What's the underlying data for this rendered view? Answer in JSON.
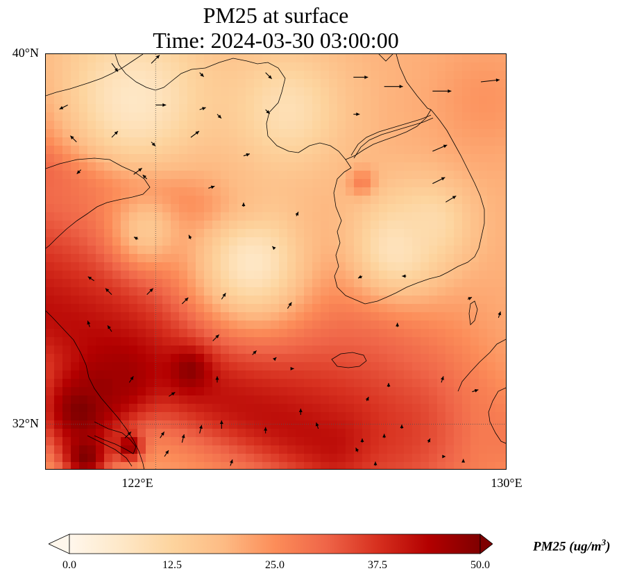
{
  "title": {
    "line1": "PM25 at surface",
    "line2": "Time: 2024-03-30 03:00:00"
  },
  "map": {
    "extent": {
      "lon_min": 119.5,
      "lon_max": 130.0,
      "lat_min": 31.0,
      "lat_max": 40.0
    },
    "lat_ticks": [
      {
        "value": 40,
        "label": "40°N"
      },
      {
        "value": 32,
        "label": "32°N"
      }
    ],
    "lon_ticks": [
      {
        "value": 122,
        "label": "122°E"
      },
      {
        "value": 130,
        "label": "130°E"
      }
    ],
    "gridlines": {
      "lon": [
        122
      ],
      "lat": [
        32
      ],
      "style": "dotted"
    },
    "field": "PM25",
    "background_value": 20
  },
  "pm25_features": [
    {
      "kind": "band",
      "from": [
        119.0,
        38.0
      ],
      "to": [
        127.0,
        34.5
      ],
      "width_deg": 1.5,
      "value": 28
    },
    {
      "kind": "band",
      "from": [
        119.5,
        37.6
      ],
      "to": [
        124.0,
        36.3
      ],
      "width_deg": 0.5,
      "value": 34
    },
    {
      "kind": "band",
      "from": [
        119.3,
        35.3
      ],
      "to": [
        127.5,
        31.9
      ],
      "width_deg": 2.2,
      "value": 36
    },
    {
      "kind": "band",
      "from": [
        119.3,
        34.5
      ],
      "to": [
        126.0,
        31.6
      ],
      "width_deg": 1.0,
      "value": 42
    },
    {
      "kind": "band",
      "from": [
        125.0,
        33.0
      ],
      "to": [
        130.5,
        31.6
      ],
      "width_deg": 0.9,
      "value": 28
    },
    {
      "kind": "blob",
      "center": [
        120.3,
        32.3
      ],
      "radius_deg": 1.0,
      "value": 50
    },
    {
      "kind": "blob",
      "center": [
        120.8,
        32.8
      ],
      "radius_deg": 0.6,
      "value": 47
    },
    {
      "kind": "blob",
      "center": [
        121.3,
        33.0
      ],
      "radius_deg": 0.7,
      "value": 46
    },
    {
      "kind": "blob",
      "center": [
        122.8,
        33.2
      ],
      "radius_deg": 0.45,
      "value": 50
    },
    {
      "kind": "blob",
      "center": [
        120.4,
        31.3
      ],
      "radius_deg": 0.5,
      "value": 50
    },
    {
      "kind": "blob",
      "center": [
        121.4,
        31.5
      ],
      "radius_deg": 0.3,
      "value": 48
    },
    {
      "kind": "blob",
      "center": [
        126.7,
        37.2
      ],
      "radius_deg": 0.3,
      "value": 32
    },
    {
      "kind": "clean",
      "center": [
        121.5,
        39.0
      ],
      "radius_deg": 1.8,
      "value": 5
    },
    {
      "kind": "clean",
      "center": [
        125.0,
        38.8
      ],
      "radius_deg": 1.3,
      "value": 8
    },
    {
      "kind": "clean",
      "center": [
        124.2,
        35.5
      ],
      "radius_deg": 1.5,
      "value": 4
    },
    {
      "kind": "clean",
      "center": [
        127.5,
        35.8
      ],
      "radius_deg": 1.2,
      "value": 6
    },
    {
      "kind": "clean",
      "center": [
        128.3,
        36.4
      ],
      "radius_deg": 0.8,
      "value": 10
    },
    {
      "kind": "clean",
      "center": [
        121.8,
        36.2
      ],
      "radius_deg": 0.8,
      "value": 14
    },
    {
      "kind": "boost",
      "center": [
        129.5,
        39.0
      ],
      "radius_deg": 1.2,
      "value": 24
    },
    {
      "kind": "boost",
      "center": [
        127.8,
        38.6
      ],
      "radius_deg": 0.5,
      "value": 20
    }
  ],
  "wind_vectors": [
    [
      121.0,
      39.8,
      0.3,
      -0.4
    ],
    [
      121.9,
      39.8,
      0.4,
      0.4
    ],
    [
      123.0,
      39.6,
      0.2,
      -0.2
    ],
    [
      124.5,
      39.6,
      0.3,
      -0.3
    ],
    [
      126.5,
      39.5,
      0.7,
      0.0
    ],
    [
      127.2,
      39.3,
      0.9,
      0.0
    ],
    [
      128.3,
      39.2,
      0.9,
      0.0
    ],
    [
      129.4,
      39.4,
      0.9,
      0.1
    ],
    [
      120.0,
      38.9,
      -0.4,
      -0.2
    ],
    [
      122.0,
      38.9,
      0.5,
      0.0
    ],
    [
      123.0,
      38.8,
      0.3,
      0.1
    ],
    [
      123.4,
      38.7,
      0.2,
      -0.2
    ],
    [
      124.5,
      38.8,
      0.2,
      -0.2
    ],
    [
      126.5,
      38.7,
      0.3,
      0.0
    ],
    [
      120.2,
      38.1,
      -0.3,
      0.3
    ],
    [
      121.0,
      38.2,
      0.3,
      0.3
    ],
    [
      121.9,
      38.1,
      0.2,
      -0.2
    ],
    [
      122.8,
      38.2,
      0.4,
      0.3
    ],
    [
      124.0,
      37.8,
      0.3,
      0.1
    ],
    [
      128.3,
      37.9,
      0.7,
      0.3
    ],
    [
      120.3,
      37.5,
      -0.2,
      -0.2
    ],
    [
      121.5,
      37.4,
      0.4,
      0.3
    ],
    [
      121.8,
      37.3,
      -0.2,
      0.2
    ],
    [
      123.2,
      37.1,
      0.3,
      0.1
    ],
    [
      124.0,
      36.7,
      0.0,
      0.2
    ],
    [
      125.2,
      36.5,
      0.1,
      0.2
    ],
    [
      128.3,
      37.2,
      0.6,
      0.3
    ],
    [
      128.6,
      36.8,
      0.5,
      0.3
    ],
    [
      121.6,
      36.0,
      -0.2,
      0.1
    ],
    [
      122.8,
      36.0,
      -0.1,
      0.2
    ],
    [
      124.7,
      35.8,
      -0.1,
      0.1
    ],
    [
      126.7,
      35.2,
      -0.2,
      -0.1
    ],
    [
      127.7,
      35.2,
      -0.2,
      0.0
    ],
    [
      120.6,
      35.1,
      -0.3,
      0.2
    ],
    [
      121.0,
      34.8,
      -0.3,
      0.3
    ],
    [
      121.8,
      34.8,
      0.3,
      0.3
    ],
    [
      122.6,
      34.6,
      0.3,
      0.3
    ],
    [
      123.5,
      34.7,
      0.2,
      0.3
    ],
    [
      125.0,
      34.5,
      0.2,
      0.3
    ],
    [
      127.5,
      34.1,
      0.0,
      0.2
    ],
    [
      129.1,
      34.7,
      0.2,
      0.1
    ],
    [
      129.8,
      34.3,
      0.1,
      0.3
    ],
    [
      120.5,
      34.1,
      -0.1,
      0.3
    ],
    [
      121.0,
      34.0,
      -0.2,
      0.3
    ],
    [
      123.3,
      33.8,
      0.3,
      0.3
    ],
    [
      124.2,
      33.5,
      0.2,
      0.2
    ],
    [
      124.7,
      33.4,
      0.1,
      0.1
    ],
    [
      125.1,
      33.2,
      0.1,
      0.0
    ],
    [
      121.4,
      32.9,
      0.2,
      0.3
    ],
    [
      122.3,
      32.6,
      0.3,
      0.2
    ],
    [
      123.4,
      32.9,
      0.0,
      0.3
    ],
    [
      125.3,
      32.2,
      0.0,
      0.3
    ],
    [
      127.3,
      32.8,
      0.0,
      0.2
    ],
    [
      128.5,
      32.9,
      0.1,
      0.3
    ],
    [
      129.2,
      32.7,
      0.3,
      0.1
    ],
    [
      126.8,
      32.5,
      0.1,
      0.2
    ],
    [
      121.3,
      31.7,
      0.3,
      0.3
    ],
    [
      122.1,
      31.7,
      0.2,
      0.3
    ],
    [
      122.6,
      31.6,
      0.1,
      0.4
    ],
    [
      123.0,
      31.8,
      0.1,
      0.4
    ],
    [
      123.5,
      31.9,
      0.0,
      0.4
    ],
    [
      124.5,
      31.8,
      0.0,
      0.3
    ],
    [
      125.7,
      31.9,
      -0.1,
      0.3
    ],
    [
      126.7,
      31.6,
      0.0,
      0.2
    ],
    [
      127.2,
      31.7,
      0.0,
      0.2
    ],
    [
      127.6,
      31.9,
      0.0,
      0.2
    ],
    [
      128.2,
      31.6,
      0.1,
      0.2
    ],
    [
      122.2,
      31.3,
      0.2,
      0.3
    ],
    [
      123.7,
      31.1,
      0.1,
      0.3
    ],
    [
      126.6,
      31.4,
      -0.1,
      0.2
    ],
    [
      127.0,
      31.1,
      0.0,
      0.2
    ],
    [
      128.6,
      31.3,
      0.0,
      0.0
    ],
    [
      129.0,
      31.2,
      0.0,
      0.1
    ]
  ],
  "colorbar": {
    "min": 0,
    "max": 50,
    "ticks": [
      "0.0",
      "12.5",
      "25.0",
      "37.5",
      "50.0"
    ],
    "label": "PM25 (ug/m",
    "label_exponent": "3",
    "label_close": ")",
    "colormap": "OrRd",
    "stops": [
      "#fff7ec",
      "#fee8c8",
      "#fdd49e",
      "#fdbb84",
      "#fc8d59",
      "#ef6548",
      "#d7301f",
      "#b30000",
      "#7f0000"
    ]
  }
}
